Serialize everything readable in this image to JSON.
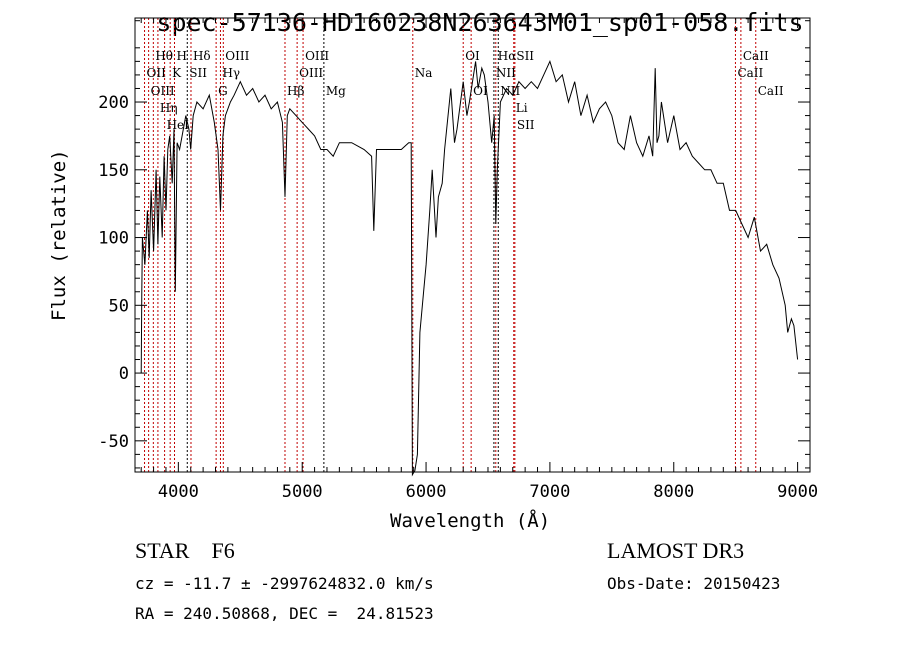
{
  "chart_data": {
    "type": "line",
    "title": "spec-57136-HD160238N263643M01_sp01-058.fits",
    "xlabel": "Wavelength (Å)",
    "ylabel": "Flux (relative)",
    "xlim": [
      3650,
      9100
    ],
    "ylim": [
      -73,
      262
    ],
    "xticks": [
      4000,
      5000,
      6000,
      7000,
      8000,
      9000
    ],
    "yticks": [
      -50,
      0,
      50,
      100,
      150,
      200
    ],
    "grid": false,
    "series": [
      {
        "name": "spectrum",
        "color": "#000000",
        "x": [
          3700,
          3705,
          3710,
          3730,
          3750,
          3765,
          3780,
          3800,
          3820,
          3835,
          3850,
          3870,
          3885,
          3900,
          3915,
          3930,
          3950,
          3965,
          3975,
          3990,
          4010,
          4030,
          4060,
          4085,
          4100,
          4120,
          4150,
          4200,
          4250,
          4290,
          4320,
          4340,
          4360,
          4380,
          4420,
          4450,
          4500,
          4550,
          4600,
          4650,
          4700,
          4750,
          4800,
          4840,
          4861,
          4880,
          4900,
          4950,
          5000,
          5050,
          5100,
          5150,
          5200,
          5250,
          5300,
          5400,
          5500,
          5560,
          5578,
          5600,
          5700,
          5800,
          5860,
          5880,
          5890,
          5910,
          5930,
          5950,
          5980,
          6000,
          6030,
          6050,
          6080,
          6100,
          6130,
          6150,
          6200,
          6230,
          6250,
          6300,
          6330,
          6350,
          6400,
          6420,
          6450,
          6470,
          6500,
          6530,
          6550,
          6563,
          6575,
          6600,
          6650,
          6700,
          6750,
          6800,
          6850,
          6900,
          6950,
          7000,
          7050,
          7100,
          7150,
          7200,
          7250,
          7300,
          7350,
          7400,
          7450,
          7500,
          7550,
          7600,
          7650,
          7700,
          7750,
          7800,
          7830,
          7850,
          7865,
          7880,
          7900,
          7950,
          8000,
          8050,
          8100,
          8150,
          8200,
          8250,
          8300,
          8350,
          8400,
          8450,
          8500,
          8550,
          8600,
          8650,
          8700,
          8750,
          8800,
          8850,
          8900,
          8920,
          8950,
          8970,
          9000
        ],
        "y": [
          0,
          60,
          100,
          80,
          120,
          85,
          135,
          90,
          150,
          95,
          145,
          100,
          160,
          120,
          165,
          175,
          140,
          180,
          60,
          170,
          165,
          175,
          190,
          180,
          165,
          190,
          200,
          195,
          205,
          185,
          165,
          120,
          175,
          190,
          200,
          205,
          215,
          205,
          210,
          200,
          205,
          195,
          200,
          185,
          130,
          190,
          195,
          190,
          185,
          180,
          175,
          165,
          165,
          160,
          170,
          170,
          165,
          160,
          105,
          165,
          165,
          165,
          170,
          170,
          -75,
          -72,
          -60,
          30,
          60,
          80,
          120,
          150,
          100,
          130,
          140,
          165,
          210,
          170,
          180,
          215,
          190,
          200,
          230,
          210,
          225,
          220,
          200,
          170,
          190,
          110,
          150,
          200,
          210,
          205,
          215,
          210,
          215,
          210,
          220,
          230,
          215,
          220,
          200,
          215,
          190,
          205,
          185,
          195,
          200,
          190,
          170,
          165,
          190,
          170,
          160,
          175,
          160,
          225,
          170,
          175,
          200,
          170,
          190,
          165,
          170,
          160,
          155,
          150,
          150,
          140,
          140,
          120,
          120,
          110,
          100,
          115,
          90,
          95,
          80,
          70,
          50,
          30,
          40,
          35,
          10
        ]
      }
    ],
    "lines": [
      {
        "label": "Hθ",
        "lam": 3798,
        "row": 0,
        "color": "#c00000"
      },
      {
        "label": "K",
        "lam": 3934,
        "row": 0,
        "color": "#c00000"
      },
      {
        "label": "Hδ",
        "lam": 4102,
        "row": 0,
        "color": "#c00000"
      },
      {
        "label": "OIII",
        "lam": 4363,
        "row": 0,
        "color": "#c00000"
      },
      {
        "label": "OIII",
        "lam": 5007,
        "row": 0,
        "color": "#c00000"
      },
      {
        "label": "Na",
        "lam": 5893,
        "row": 1,
        "color": "#c00000"
      },
      {
        "label": "OI",
        "lam": 6300,
        "row": 0,
        "color": "#c00000"
      },
      {
        "label": "HαSII",
        "lam": 6563,
        "row": 0,
        "color": "#c00000"
      },
      {
        "label": "CaII",
        "lam": 8542,
        "row": 0,
        "color": "#c00000"
      },
      {
        "label": "OII",
        "lam": 3727,
        "row": 1,
        "color": "#c00000"
      },
      {
        "label": "HeI",
        "lam": 3889,
        "row": 1,
        "color": "#c00000"
      },
      {
        "label": "SII",
        "lam": 4072,
        "row": 1,
        "color": "#000000"
      },
      {
        "label": "Hγ",
        "lam": 4340,
        "row": 1,
        "color": "#c00000"
      },
      {
        "label": "OIII",
        "lam": 4959,
        "row": 1,
        "color": "#c00000"
      },
      {
        "label": "NII",
        "lam": 6548,
        "row": 1,
        "color": "#000000"
      },
      {
        "label": "Li",
        "lam": 6708,
        "row": 1,
        "color": "#c00000"
      },
      {
        "label": "CaII",
        "lam": 8498,
        "row": 1,
        "color": "#c00000"
      },
      {
        "label": "OIII",
        "lam": 3760,
        "row": 2,
        "color": "#c00000"
      },
      {
        "label": "Hη",
        "lam": 3835,
        "row": 2,
        "color": "#c00000"
      },
      {
        "label": "H",
        "lam": 3969,
        "row": 2,
        "color": "#c00000"
      },
      {
        "label": "G",
        "lam": 4305,
        "row": 2,
        "color": "#c00000"
      },
      {
        "label": "Hβ",
        "lam": 4861,
        "row": 2,
        "color": "#c00000"
      },
      {
        "label": "Mg",
        "lam": 5175,
        "row": 2,
        "color": "#000000"
      },
      {
        "label": "OI",
        "lam": 6364,
        "row": 2,
        "color": "#c00000"
      },
      {
        "label": "NII",
        "lam": 6583,
        "row": 2,
        "color": "#000000"
      },
      {
        "label": "SII",
        "lam": 6717,
        "row": 2,
        "color": "#c00000"
      },
      {
        "label": "CaII",
        "lam": 8662,
        "row": 2,
        "color": "#c00000"
      }
    ]
  },
  "info": {
    "object": "STAR    F6",
    "survey": "LAMOST DR3",
    "cz": "cz = -11.7 ± -2997624832.0 km/s",
    "obs_date": "Obs-Date: 20150423",
    "radec": "RA = 240.50868, DEC =  24.81523"
  }
}
